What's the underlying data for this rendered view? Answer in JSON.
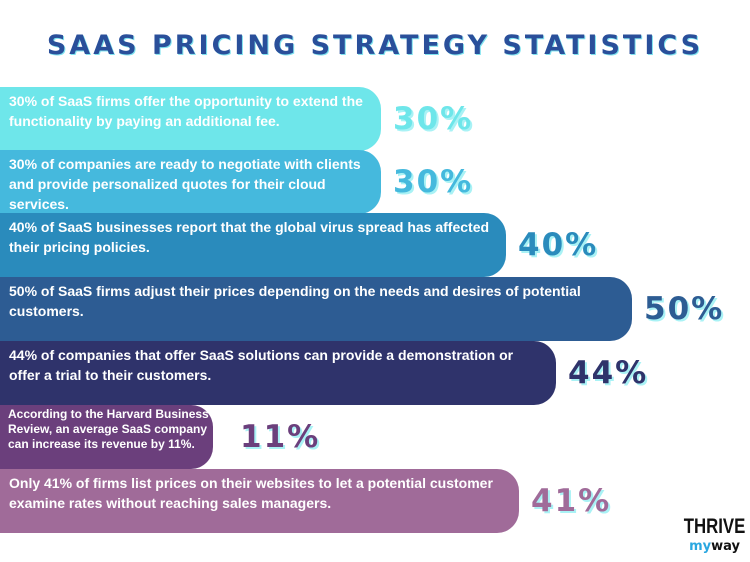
{
  "title": "SAAS PRICING STRATEGY STATISTICS",
  "logo": {
    "line1": "THRIVE",
    "my": "my",
    "way": "way"
  },
  "colors": [
    "#6ee6ea",
    "#45b9dd",
    "#2a8bbc",
    "#2d5c93",
    "#2f336b",
    "#6b3f7c",
    "#a06b99"
  ],
  "chart_data": {
    "type": "bar",
    "orientation": "horizontal",
    "title": "SAAS PRICING STRATEGY STATISTICS",
    "categories": [
      "30% of SaaS firms offer the opportunity to extend the functionality by paying an additional fee.",
      "30% of companies are ready to negotiate with clients and provide personalized quotes for their cloud services.",
      "40% of SaaS businesses report that the global virus spread has affected their pricing policies.",
      "50% of SaaS firms adjust their prices depending on the needs and desires of potential customers.",
      "44% of companies that offer SaaS solutions can provide a demonstration or offer a trial to their customers.",
      "According to the Harvard Business Review, an average SaaS company can increase its revenue by 11%.",
      "Only 41% of firms list prices on their websites to let a potential customer examine rates without reaching sales managers."
    ],
    "values": [
      30,
      30,
      40,
      50,
      44,
      11,
      41
    ],
    "labels": [
      "30%",
      "30%",
      "40%",
      "50%",
      "44%",
      "11%",
      "41%"
    ]
  }
}
